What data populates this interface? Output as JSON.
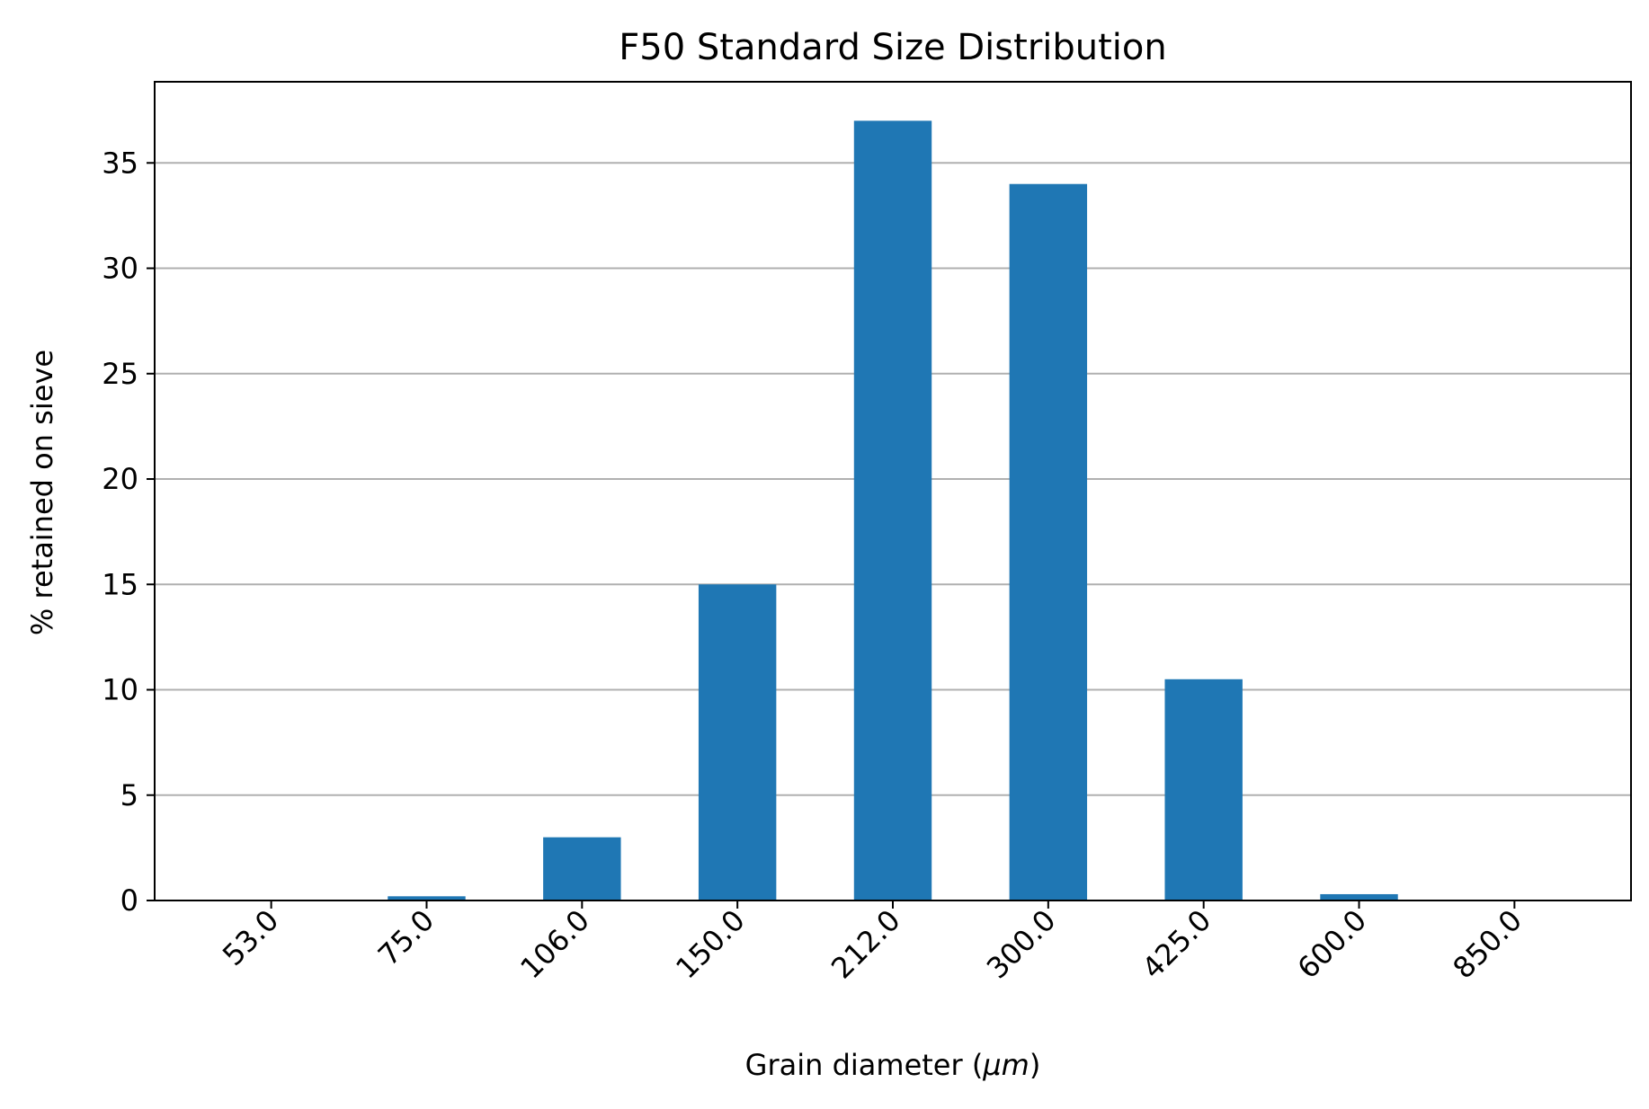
{
  "chart_data": {
    "type": "bar",
    "title": "F50 Standard Size Distribution",
    "xlabel_prefix": "Grain diameter (",
    "xlabel_unit": "μm",
    "xlabel_suffix": ")",
    "ylabel": "% retained on sieve",
    "categories": [
      "53.0",
      "75.0",
      "106.0",
      "150.0",
      "212.0",
      "300.0",
      "425.0",
      "600.0",
      "850.0"
    ],
    "values": [
      0,
      0.2,
      3,
      15,
      37,
      34,
      10.5,
      0.3,
      0
    ],
    "ylim": [
      0,
      38.85
    ],
    "yticks": [
      0,
      5,
      10,
      15,
      20,
      25,
      30,
      35
    ],
    "grid": "y",
    "colors": {
      "bar": "#1f77b4",
      "grid": "#b0b0b0",
      "axis": "#000000"
    }
  }
}
